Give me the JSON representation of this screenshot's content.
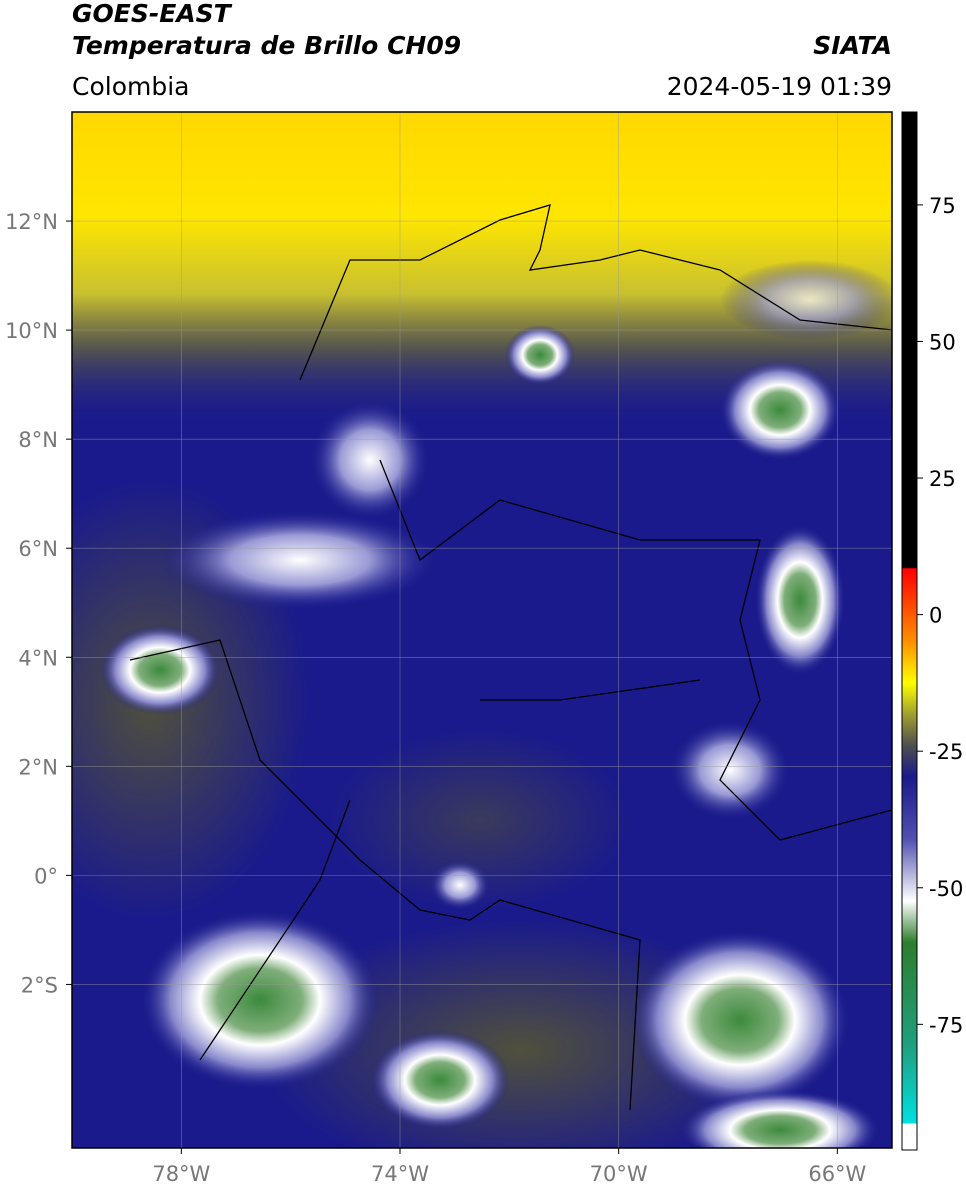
{
  "header": {
    "title": "GOES-EAST",
    "subtitle": "Temperatura de Brillo CH09",
    "source": "SIATA",
    "region": "Colombia",
    "datetime": "2024-05-19 01:39"
  },
  "map": {
    "xlim": [
      -80,
      -65
    ],
    "ylim": [
      -5,
      14
    ],
    "xticks": [
      {
        "value": -78,
        "label": "78°W"
      },
      {
        "value": -74,
        "label": "74°W"
      },
      {
        "value": -70,
        "label": "70°W"
      },
      {
        "value": -66,
        "label": "66°W"
      }
    ],
    "yticks": [
      {
        "value": 12,
        "label": "12°N"
      },
      {
        "value": 10,
        "label": "10°N"
      },
      {
        "value": 8,
        "label": "8°N"
      },
      {
        "value": 6,
        "label": "6°N"
      },
      {
        "value": 4,
        "label": "4°N"
      },
      {
        "value": 2,
        "label": "2°N"
      },
      {
        "value": 0,
        "label": "0°"
      },
      {
        "value": -2,
        "label": "2°S"
      }
    ]
  },
  "colorbar": {
    "lim": [
      -98,
      92
    ],
    "ticks": [
      75,
      50,
      25,
      0,
      -25,
      -50,
      -75
    ]
  }
}
